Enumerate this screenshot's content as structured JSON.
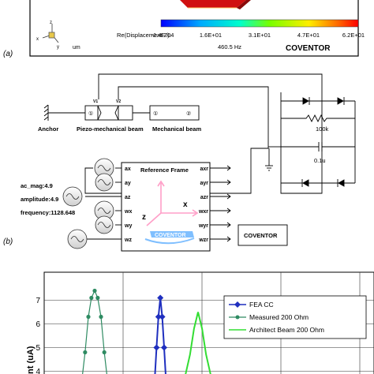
{
  "panel_a": {
    "label": "(a)",
    "axis_z": "z",
    "axis_x": "x",
    "axis_y": "y",
    "colorbar_title": "Re(Displacement Z):",
    "colorbar_ticks": [
      "-1.4E-04",
      "1.6E+01",
      "3.1E+01",
      "4.7E+01",
      "6.2E+01"
    ],
    "unit": "um",
    "frequency": "460.5 Hz",
    "brand": "COVENTOR"
  },
  "panel_b": {
    "label": "(b)",
    "anchor_label": "Anchor",
    "piezo_label": "Piezo-mechanical beam",
    "mech_label": "Mechanical beam",
    "port_v1": "V1",
    "port_v2": "V2",
    "node_1": "①",
    "node_2": "②",
    "resistor": "100k",
    "capacitor": "0.1u",
    "block_title": "Reference Frame",
    "inputs": [
      "ax",
      "ay",
      "az",
      "wx",
      "wy",
      "wz"
    ],
    "outputs": [
      "axr",
      "ayr",
      "azr",
      "wxr",
      "wyr",
      "wzr"
    ],
    "frame_z": "z",
    "frame_x": "x",
    "frame_logo": "COVENTOR",
    "params": [
      "ac_mag:4.9",
      "amplitude:4.9",
      "frequency:1128.648"
    ],
    "brand": "COVENTOR"
  },
  "chart_data": {
    "type": "line",
    "ylabel": "nt (uA)",
    "y_ticks": [
      "7",
      "6",
      "5",
      "4"
    ],
    "legend": [
      "FEA CC",
      "Measured 200 Ohm",
      "Architect Beam 200 Ohm"
    ],
    "series": [
      {
        "name": "FEA CC",
        "color": "#1f2fbf",
        "points": [
          [
            0.0,
            3.6
          ],
          [
            0.1,
            5.0
          ],
          [
            0.2,
            6.3
          ],
          [
            0.3,
            7.1
          ],
          [
            0.4,
            6.3
          ],
          [
            0.5,
            5.0
          ],
          [
            0.6,
            3.6
          ]
        ]
      },
      {
        "name": "Measured 200 Ohm",
        "color": "#2e8b62",
        "points": [
          [
            0.0,
            3.7
          ],
          [
            0.12,
            4.8
          ],
          [
            0.25,
            6.3
          ],
          [
            0.37,
            7.1
          ],
          [
            0.5,
            7.4
          ],
          [
            0.62,
            7.1
          ],
          [
            0.75,
            6.3
          ],
          [
            0.88,
            4.8
          ],
          [
            1.0,
            3.7
          ]
        ]
      },
      {
        "name": "Architect Beam 200 Ohm",
        "color": "#33dd33",
        "points": [
          [
            0.0,
            3.7
          ],
          [
            0.2,
            4.7
          ],
          [
            0.35,
            5.8
          ],
          [
            0.5,
            6.5
          ],
          [
            0.65,
            5.8
          ],
          [
            0.8,
            4.7
          ],
          [
            1.0,
            3.7
          ]
        ]
      }
    ]
  },
  "colors": {
    "accent_blue": "#1f2fbf",
    "accent_green": "#2e8b62",
    "light_green": "#33dd33",
    "pink": "#ff9fc8",
    "logo_blue": "#7fbfff"
  }
}
